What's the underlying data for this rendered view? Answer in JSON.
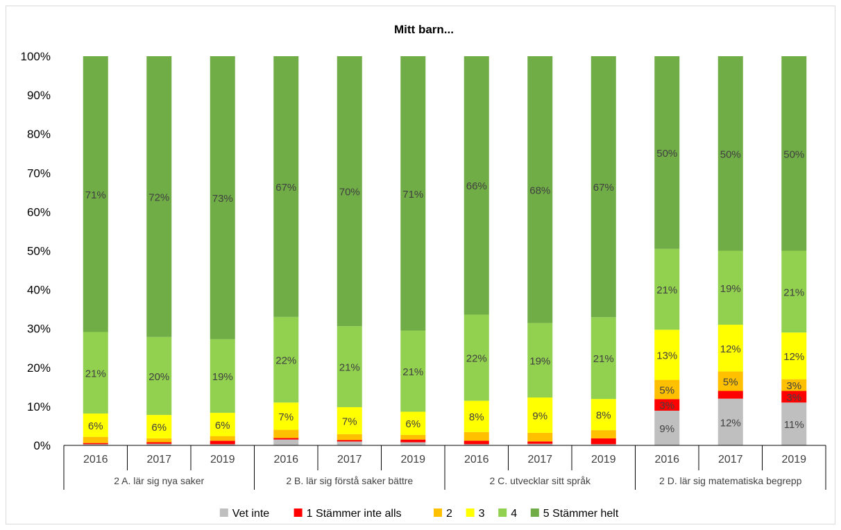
{
  "chart_data": {
    "type": "bar",
    "stacked": "percent",
    "title": "Mitt barn...",
    "ylim": [
      0,
      100
    ],
    "y_ticks": [
      "0%",
      "10%",
      "20%",
      "30%",
      "40%",
      "50%",
      "60%",
      "70%",
      "80%",
      "90%",
      "100%"
    ],
    "grid": false,
    "legend_position": "bottom",
    "groups": [
      {
        "label": "2 A. lär sig nya saker",
        "categories": [
          "2016",
          "2017",
          "2019"
        ]
      },
      {
        "label": "2 B. lär sig förstå saker bättre",
        "categories": [
          "2016",
          "2017",
          "2019"
        ]
      },
      {
        "label": "2 C. utvecklar sitt språk",
        "categories": [
          "2016",
          "2017",
          "2019"
        ]
      },
      {
        "label": "2 D. lär sig matematiska begrepp",
        "categories": [
          "2016",
          "2017",
          "2019"
        ]
      }
    ],
    "series": [
      {
        "name": "Vet inte",
        "color": "#bfbfbf",
        "values": [
          0.3,
          0.4,
          0.3,
          1.5,
          1.0,
          0.8,
          0.3,
          0.4,
          0.3,
          9,
          12,
          11
        ]
      },
      {
        "name": "1 Stämmer inte alls",
        "color": "#ff0000",
        "values": [
          0.3,
          0.4,
          0.9,
          0.4,
          0.4,
          0.7,
          0.9,
          0.6,
          1.5,
          3,
          2,
          3
        ]
      },
      {
        "name": "2",
        "color": "#ffc000",
        "values": [
          1.6,
          1.0,
          1.2,
          2.1,
          1.5,
          1.2,
          2.2,
          2.2,
          2.1,
          5,
          5,
          3
        ]
      },
      {
        "name": "3",
        "color": "#ffff00",
        "values": [
          6,
          6,
          6,
          7,
          7,
          6,
          8,
          9,
          8,
          13,
          12,
          12
        ]
      },
      {
        "name": "4",
        "color": "#92d050",
        "values": [
          21,
          20,
          19,
          22,
          21,
          21,
          22,
          19,
          21,
          21,
          19,
          21
        ]
      },
      {
        "name": "5 Stämmer helt",
        "color": "#70ad47",
        "values": [
          71,
          72,
          73,
          67,
          70,
          71,
          66,
          68,
          67,
          50,
          50,
          50
        ]
      }
    ],
    "data_labels": [
      {
        "series": "3",
        "values": [
          "6%",
          "6%",
          "6%",
          "7%",
          "7%",
          "6%",
          "8%",
          "9%",
          "8%",
          "13%",
          "12%",
          "12%"
        ]
      },
      {
        "series": "4",
        "values": [
          "21%",
          "20%",
          "19%",
          "22%",
          "21%",
          "21%",
          "22%",
          "19%",
          "21%",
          "21%",
          "19%",
          "21%"
        ]
      },
      {
        "series": "5 Stämmer helt",
        "values": [
          "71%",
          "72%",
          "73%",
          "67%",
          "70%",
          "71%",
          "66%",
          "68%",
          "67%",
          "50%",
          "50%",
          "50%"
        ]
      },
      {
        "series": "Vet inte",
        "values": [
          "",
          "",
          "",
          "",
          "",
          "",
          "",
          "",
          "",
          "9%",
          "12%",
          "11%"
        ]
      },
      {
        "series": "1 Stämmer inte alls",
        "values": [
          "",
          "",
          "",
          "",
          "",
          "",
          "",
          "",
          "",
          "3%",
          "",
          "3%"
        ]
      },
      {
        "series": "2",
        "values": [
          "",
          "",
          "",
          "",
          "",
          "",
          "",
          "",
          "",
          "5%",
          "5%",
          "3%"
        ]
      }
    ]
  }
}
